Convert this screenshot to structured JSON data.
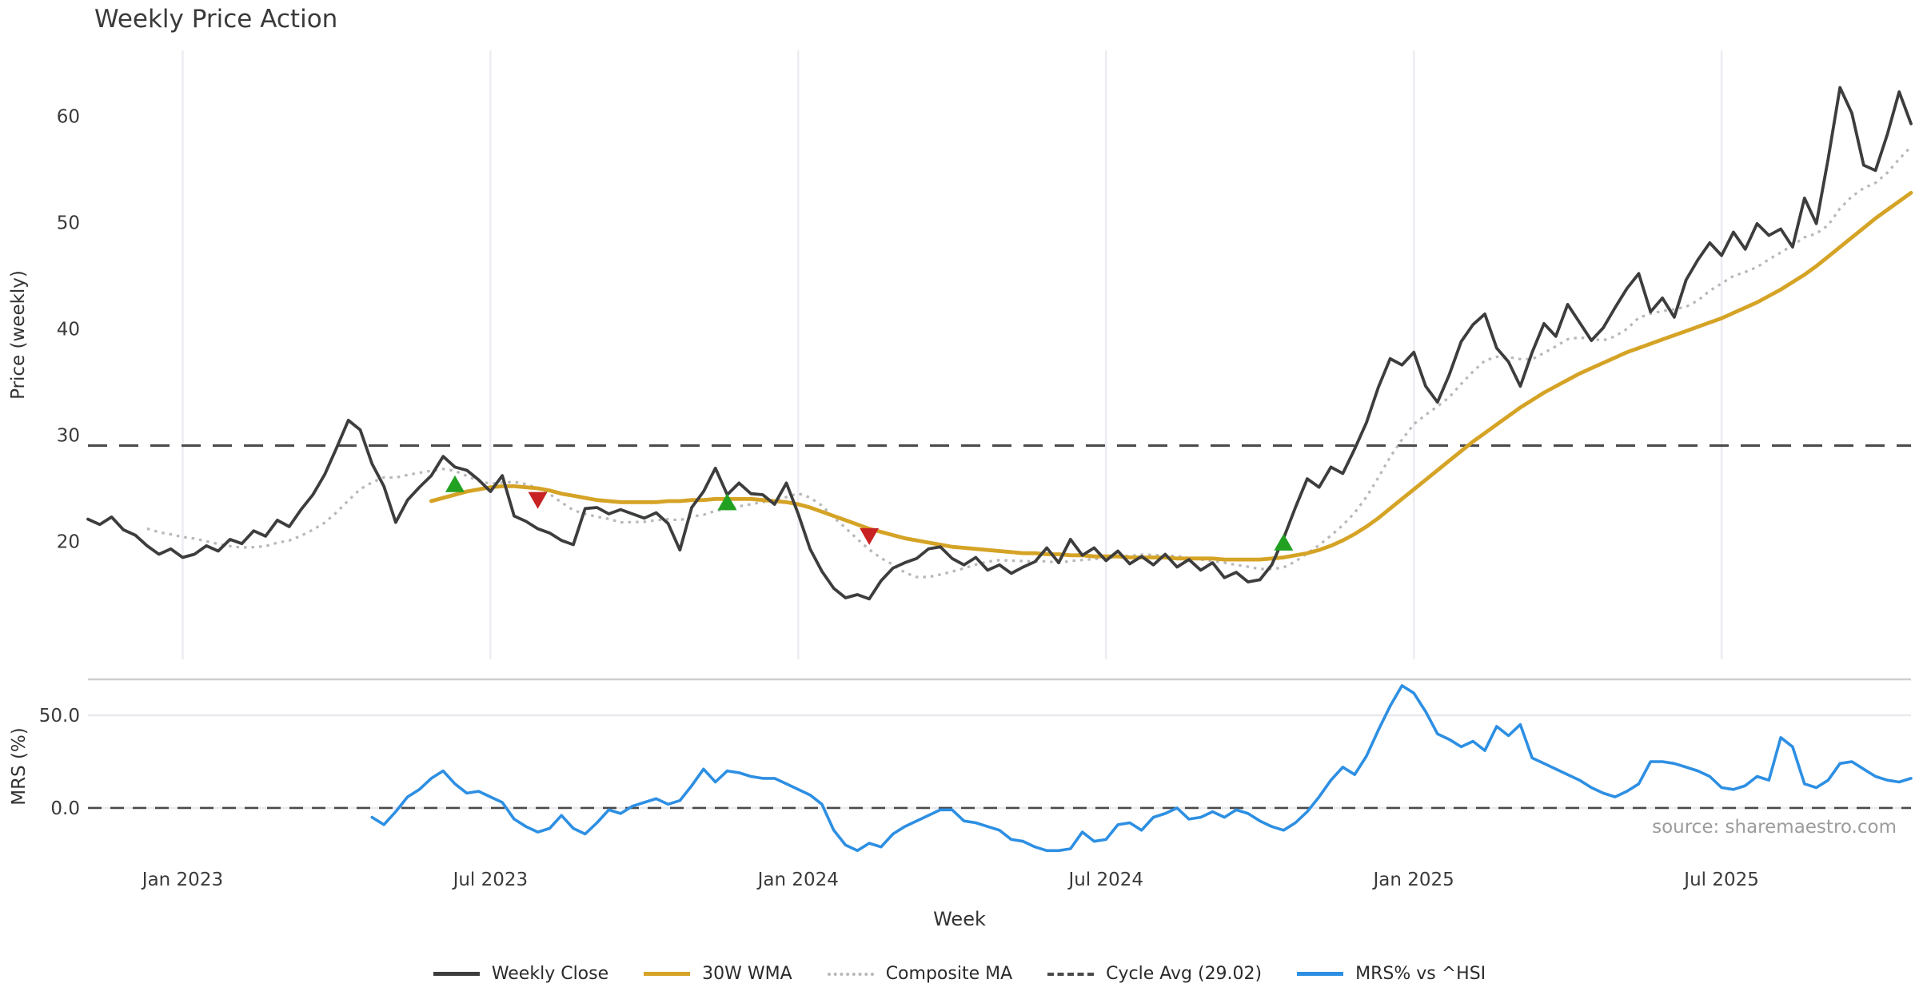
{
  "title": "Weekly Price Action",
  "price_axis": {
    "label": "Price (weekly)",
    "ticks": [
      20,
      30,
      40,
      50,
      60
    ]
  },
  "mrs_axis": {
    "label": "MRS (%)",
    "ticks": [
      {
        "v": 0,
        "label": "0.0"
      },
      {
        "v": 50,
        "label": "50.0"
      }
    ]
  },
  "x_axis": {
    "label": "Week",
    "ticks": [
      {
        "i": 8,
        "label": "Jan 2023"
      },
      {
        "i": 34,
        "label": "Jul 2023"
      },
      {
        "i": 60,
        "label": "Jan 2024"
      },
      {
        "i": 86,
        "label": "Jul 2024"
      },
      {
        "i": 112,
        "label": "Jan 2025"
      },
      {
        "i": 138,
        "label": "Jul 2025"
      }
    ]
  },
  "source_note": "source: sharemaestro.com",
  "legend": [
    {
      "label": "Weekly Close",
      "color": "#3d3d3d",
      "style": "solid"
    },
    {
      "label": "30W WMA",
      "color": "#d5a325",
      "style": "solid"
    },
    {
      "label": "Composite MA",
      "color": "#b8b8b8",
      "style": "dotted"
    },
    {
      "label": "Cycle Avg (29.02)",
      "color": "#4a4a4a",
      "style": "dashed"
    },
    {
      "label": "MRS% vs ^HSI",
      "color": "#2d8fe3",
      "style": "solid"
    }
  ],
  "colors": {
    "weekly_close": "#3d3d3d",
    "wma30": "#d5a325",
    "composite": "#b8b8b8",
    "cycle_avg": "#4a4a4a",
    "mrs": "#2d8fe3",
    "buy_marker": "#22a022",
    "sell_marker": "#c82222",
    "vgrid": "#ededf2",
    "hgrid": "#e9e9ee",
    "panel_border": "#cfcfcf",
    "tick_text": "#3a3a3a"
  },
  "chart_data": {
    "type": "line",
    "x": {
      "start_date": "2022-11-06",
      "step_days": 7,
      "count": 155
    },
    "cycle_avg_value": 29.02,
    "composite_ma": {
      "derived_from": "weekly_close",
      "method": "trailing_mean",
      "window": 10,
      "first_shown_index": 5
    },
    "panels": [
      {
        "name": "price",
        "ylabel": "Price (weekly)",
        "ylim": [
          13.8,
          65.3
        ],
        "yticks": [
          20,
          30,
          40,
          50,
          60
        ],
        "series": [
          {
            "name": "Weekly Close",
            "values": [
              22.1,
              21.6,
              22.3,
              21.1,
              20.6,
              19.6,
              18.8,
              19.3,
              18.5,
              18.8,
              19.6,
              19.1,
              20.2,
              19.8,
              21.0,
              20.5,
              22.0,
              21.4,
              23.0,
              24.4,
              26.3,
              28.8,
              31.4,
              30.5,
              27.3,
              25.2,
              21.8,
              23.9,
              25.1,
              26.2,
              28.0,
              27.0,
              26.7,
              25.8,
              24.7,
              26.2,
              22.4,
              21.9,
              21.2,
              20.8,
              20.1,
              19.7,
              23.1,
              23.2,
              22.6,
              23.0,
              22.6,
              22.2,
              22.7,
              21.7,
              19.2,
              23.2,
              24.7,
              26.9,
              24.4,
              25.5,
              24.5,
              24.4,
              23.5,
              25.5,
              22.6,
              19.3,
              17.2,
              15.6,
              14.7,
              15.0,
              14.6,
              16.3,
              17.5,
              18.0,
              18.4,
              19.3,
              19.5,
              18.4,
              17.8,
              18.5,
              17.3,
              17.8,
              17.0,
              17.6,
              18.1,
              19.4,
              18.0,
              20.2,
              18.7,
              19.4,
              18.2,
              19.1,
              17.9,
              18.6,
              17.8,
              18.8,
              17.6,
              18.3,
              17.3,
              18.0,
              16.6,
              17.1,
              16.2,
              16.4,
              17.8,
              20.3,
              23.2,
              25.9,
              25.1,
              27.0,
              26.4,
              28.7,
              31.2,
              34.5,
              37.2,
              36.6,
              37.8,
              34.6,
              33.1,
              35.7,
              38.8,
              40.4,
              41.4,
              38.2,
              36.9,
              34.6,
              37.8,
              40.5,
              39.3,
              42.3,
              40.6,
              38.9,
              40.1,
              42.0,
              43.8,
              45.2,
              41.6,
              42.9,
              41.1,
              44.6,
              46.5,
              48.1,
              46.9,
              49.1,
              47.5,
              49.9,
              48.8,
              49.4,
              47.7,
              52.3,
              49.9,
              56.0,
              62.7,
              60.3,
              55.4,
              54.9,
              58.3,
              62.3,
              59.3
            ]
          },
          {
            "name": "30W WMA",
            "values": [
              null,
              null,
              null,
              null,
              null,
              null,
              null,
              null,
              null,
              null,
              null,
              null,
              null,
              null,
              null,
              null,
              null,
              null,
              null,
              null,
              null,
              null,
              null,
              null,
              null,
              null,
              null,
              null,
              null,
              23.8,
              24.1,
              24.4,
              24.7,
              24.9,
              25.1,
              25.2,
              25.2,
              25.1,
              25.0,
              24.8,
              24.5,
              24.3,
              24.1,
              23.9,
              23.8,
              23.7,
              23.7,
              23.7,
              23.7,
              23.8,
              23.8,
              23.9,
              23.9,
              24.0,
              24.0,
              24.0,
              24.0,
              23.9,
              23.8,
              23.7,
              23.5,
              23.2,
              22.8,
              22.4,
              22.0,
              21.6,
              21.2,
              20.9,
              20.6,
              20.3,
              20.1,
              19.9,
              19.7,
              19.5,
              19.4,
              19.3,
              19.2,
              19.1,
              19.0,
              18.9,
              18.9,
              18.8,
              18.8,
              18.7,
              18.7,
              18.6,
              18.6,
              18.6,
              18.5,
              18.5,
              18.5,
              18.5,
              18.4,
              18.4,
              18.4,
              18.4,
              18.3,
              18.3,
              18.3,
              18.3,
              18.4,
              18.5,
              18.7,
              18.9,
              19.2,
              19.6,
              20.1,
              20.7,
              21.4,
              22.2,
              23.1,
              24.0,
              24.9,
              25.8,
              26.7,
              27.6,
              28.5,
              29.4,
              30.2,
              31.0,
              31.8,
              32.6,
              33.3,
              34.0,
              34.6,
              35.2,
              35.8,
              36.3,
              36.8,
              37.3,
              37.8,
              38.2,
              38.6,
              39.0,
              39.4,
              39.8,
              40.2,
              40.6,
              41.0,
              41.5,
              42.0,
              42.5,
              43.1,
              43.7,
              44.4,
              45.1,
              45.9,
              46.8,
              47.7,
              48.6,
              49.5,
              50.4,
              51.2,
              52.0,
              52.8
            ]
          }
        ],
        "markers": {
          "buy": [
            {
              "i": 31,
              "price": 25.4
            },
            {
              "i": 54,
              "price": 23.7
            },
            {
              "i": 101,
              "price": 19.9
            }
          ],
          "sell": [
            {
              "i": 38,
              "price": 23.9
            },
            {
              "i": 66,
              "price": 20.5
            }
          ]
        }
      },
      {
        "name": "mrs",
        "ylabel": "MRS (%)",
        "ylim": [
          -27.6,
          69.4
        ],
        "yticks": [
          0,
          50
        ],
        "series": [
          {
            "name": "MRS% vs ^HSI",
            "values": [
              null,
              null,
              null,
              null,
              null,
              null,
              null,
              null,
              null,
              null,
              null,
              null,
              null,
              null,
              null,
              null,
              null,
              null,
              null,
              null,
              null,
              null,
              null,
              null,
              -5,
              -9,
              -2,
              6,
              10,
              16,
              20,
              13,
              8,
              9,
              6,
              3,
              -6,
              -10,
              -13,
              -11,
              -4,
              -11,
              -14,
              -8,
              -1,
              -3,
              1,
              3,
              5,
              2,
              4,
              12,
              21,
              14,
              20,
              19,
              17,
              16,
              16,
              13,
              10,
              7,
              2,
              -12,
              -20,
              -23,
              -19,
              -21,
              -14,
              -10,
              -7,
              -4,
              -1,
              -1,
              -7,
              -8,
              -10,
              -12,
              -17,
              -18,
              -21,
              -23,
              -23,
              -22,
              -13,
              -18,
              -17,
              -9,
              -8,
              -12,
              -5,
              -3,
              0,
              -6,
              -5,
              -2,
              -5,
              -1,
              -3,
              -7,
              -10,
              -12,
              -8,
              -2,
              6,
              15,
              22,
              18,
              28,
              42,
              55,
              66,
              62,
              52,
              40,
              37,
              33,
              36,
              31,
              44,
              39,
              45,
              27,
              24,
              21,
              18,
              15,
              11,
              8,
              6,
              9,
              13,
              25,
              25,
              24,
              22,
              20,
              17,
              11,
              10,
              12,
              17,
              15,
              38,
              33,
              13,
              11,
              15,
              24,
              25,
              21,
              17,
              15,
              14,
              16
            ]
          }
        ],
        "zero_line": 0
      }
    ]
  }
}
